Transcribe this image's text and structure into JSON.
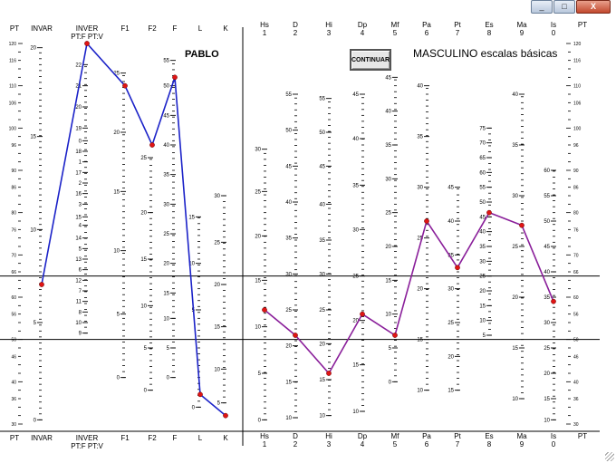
{
  "window": {
    "minimize": "_",
    "maximize": "□",
    "close": "X"
  },
  "patient_name": "PABLO",
  "title": "MASCULINO escalas básicas",
  "continue_button": "CONTINUAR",
  "colors": {
    "validity_line": "#1b22c8",
    "clinical_line": "#8a1f9a",
    "point": "#e01414",
    "axis": "#000000"
  },
  "left_header": {
    "top": [
      {
        "lines": [
          "PT"
        ]
      },
      {
        "lines": [
          "INVAR"
        ]
      },
      {
        "lines": [
          "INVER",
          "PT:F PT:V"
        ]
      },
      {
        "lines": [
          "F1"
        ]
      },
      {
        "lines": [
          "F2"
        ]
      },
      {
        "lines": [
          "F"
        ]
      },
      {
        "lines": [
          "L"
        ]
      },
      {
        "lines": [
          "K"
        ]
      }
    ],
    "bottom": [
      {
        "lines": [
          "PT"
        ]
      },
      {
        "lines": [
          "INVAR"
        ]
      },
      {
        "lines": [
          "INVER",
          "PT:F PT:V"
        ]
      },
      {
        "lines": [
          "F1"
        ]
      },
      {
        "lines": [
          "F2"
        ]
      },
      {
        "lines": [
          "F"
        ]
      },
      {
        "lines": [
          "L"
        ]
      },
      {
        "lines": [
          "K"
        ]
      }
    ]
  },
  "right_header": {
    "top": [
      {
        "lines": [
          "Hs",
          "1"
        ]
      },
      {
        "lines": [
          "D",
          "2"
        ]
      },
      {
        "lines": [
          "Hi",
          "3"
        ]
      },
      {
        "lines": [
          "Dp",
          "4"
        ]
      },
      {
        "lines": [
          "Mf",
          "5"
        ]
      },
      {
        "lines": [
          "Pa",
          "6"
        ]
      },
      {
        "lines": [
          "Pt",
          "7"
        ]
      },
      {
        "lines": [
          "Es",
          "8"
        ]
      },
      {
        "lines": [
          "Ma",
          "9"
        ]
      },
      {
        "lines": [
          "Is",
          "0"
        ]
      },
      {
        "lines": [
          "PT"
        ]
      }
    ],
    "bottom": [
      {
        "lines": [
          "Hs",
          "1"
        ]
      },
      {
        "lines": [
          "D",
          "2"
        ]
      },
      {
        "lines": [
          "Hi",
          "3"
        ]
      },
      {
        "lines": [
          "Dp",
          "4"
        ]
      },
      {
        "lines": [
          "Mf",
          "5"
        ]
      },
      {
        "lines": [
          "Pa",
          "6"
        ]
      },
      {
        "lines": [
          "Pt",
          "7"
        ]
      },
      {
        "lines": [
          "Es",
          "8"
        ]
      },
      {
        "lines": [
          "Ma",
          "9"
        ]
      },
      {
        "lines": [
          "Is",
          "0"
        ]
      },
      {
        "lines": [
          "PT"
        ]
      }
    ]
  },
  "t_axis": {
    "min": 30,
    "max": 120,
    "labels": [
      120,
      116,
      110,
      106,
      100,
      96,
      90,
      86,
      80,
      76,
      70,
      66,
      60,
      56,
      50,
      46,
      40,
      36,
      30
    ]
  },
  "reference_lines_t": [
    65,
    50
  ],
  "validity_scales": [
    {
      "name": "INVAR",
      "labels": [
        {
          "v": "20",
          "t": 119
        },
        {
          "v": "15",
          "t": 98
        },
        {
          "v": "10",
          "t": 76
        },
        {
          "v": "5",
          "t": 54
        },
        {
          "v": "0",
          "t": 31
        }
      ],
      "side": "left"
    },
    {
      "name": "INVER",
      "labels": [
        {
          "v": "22",
          "t": 115
        },
        {
          "v": "21",
          "t": 110
        },
        {
          "v": "20",
          "t": 105
        },
        {
          "v": "19",
          "t": 100
        },
        {
          "v": "0",
          "t": 97
        },
        {
          "v": "18",
          "t": 94.5
        },
        {
          "v": "1",
          "t": 92
        },
        {
          "v": "17",
          "t": 89.5
        },
        {
          "v": "2",
          "t": 87
        },
        {
          "v": "16",
          "t": 84.5
        },
        {
          "v": "3",
          "t": 82
        },
        {
          "v": "15",
          "t": 79
        },
        {
          "v": "4",
          "t": 77
        },
        {
          "v": "14",
          "t": 74
        },
        {
          "v": "5",
          "t": 71.5
        },
        {
          "v": "13",
          "t": 69
        },
        {
          "v": "6",
          "t": 66.5
        },
        {
          "v": "12",
          "t": 64
        },
        {
          "v": "7",
          "t": 61.5
        },
        {
          "v": "11",
          "t": 59
        },
        {
          "v": "8",
          "t": 56.5
        },
        {
          "v": "10",
          "t": 54
        },
        {
          "v": "9",
          "t": 51.5
        }
      ],
      "side": "left"
    },
    {
      "name": "F1",
      "labels": [
        {
          "v": "25",
          "t": 113
        },
        {
          "v": "20",
          "t": 99
        },
        {
          "v": "15",
          "t": 85
        },
        {
          "v": "10",
          "t": 71
        },
        {
          "v": "5",
          "t": 56
        },
        {
          "v": "0",
          "t": 41
        }
      ],
      "side": "left"
    },
    {
      "name": "F2",
      "labels": [
        {
          "v": "25",
          "t": 93
        },
        {
          "v": "20",
          "t": 80
        },
        {
          "v": "15",
          "t": 69
        },
        {
          "v": "10",
          "t": 58
        },
        {
          "v": "5",
          "t": 48
        },
        {
          "v": "0",
          "t": 38
        }
      ],
      "side": "left"
    },
    {
      "name": "F",
      "labels": [
        {
          "v": "55",
          "t": 116
        },
        {
          "v": "50",
          "t": 110
        },
        {
          "v": "45",
          "t": 103
        },
        {
          "v": "40",
          "t": 96
        },
        {
          "v": "35",
          "t": 89
        },
        {
          "v": "30",
          "t": 82
        },
        {
          "v": "25",
          "t": 75
        },
        {
          "v": "20",
          "t": 68
        },
        {
          "v": "15",
          "t": 61
        },
        {
          "v": "10",
          "t": 55
        },
        {
          "v": "5",
          "t": 48
        },
        {
          "v": "0",
          "t": 41
        }
      ],
      "side": "left"
    },
    {
      "name": "L",
      "labels": [
        {
          "v": "15",
          "t": 79
        },
        {
          "v": "10",
          "t": 68
        },
        {
          "v": "5",
          "t": 57
        },
        {
          "v": "0",
          "t": 34
        }
      ],
      "side": "left"
    },
    {
      "name": "K",
      "labels": [
        {
          "v": "30",
          "t": 84
        },
        {
          "v": "25",
          "t": 73
        },
        {
          "v": "20",
          "t": 63
        },
        {
          "v": "15",
          "t": 53
        },
        {
          "v": "10",
          "t": 43
        },
        {
          "v": "5",
          "t": 35
        }
      ],
      "side": "left"
    }
  ],
  "clinical_scales": [
    {
      "name": "Hs",
      "labels": [
        {
          "v": "30",
          "t": 95
        },
        {
          "v": "25",
          "t": 85
        },
        {
          "v": "20",
          "t": 74.5
        },
        {
          "v": "15",
          "t": 64
        },
        {
          "v": "10",
          "t": 53
        },
        {
          "v": "5",
          "t": 42
        },
        {
          "v": "0",
          "t": 31
        }
      ]
    },
    {
      "name": "D",
      "labels": [
        {
          "v": "55",
          "t": 108
        },
        {
          "v": "50",
          "t": 99.5
        },
        {
          "v": "45",
          "t": 91
        },
        {
          "v": "40",
          "t": 82.5
        },
        {
          "v": "35",
          "t": 74
        },
        {
          "v": "30",
          "t": 65.5
        },
        {
          "v": "25",
          "t": 57
        },
        {
          "v": "20",
          "t": 48.5
        },
        {
          "v": "15",
          "t": 40
        },
        {
          "v": "10",
          "t": 31.5
        }
      ]
    },
    {
      "name": "Hi",
      "labels": [
        {
          "v": "55",
          "t": 107
        },
        {
          "v": "50",
          "t": 99
        },
        {
          "v": "45",
          "t": 91
        },
        {
          "v": "40",
          "t": 82
        },
        {
          "v": "35",
          "t": 73.5
        },
        {
          "v": "30",
          "t": 65.5
        },
        {
          "v": "25",
          "t": 57
        },
        {
          "v": "20",
          "t": 49
        },
        {
          "v": "15",
          "t": 40.5
        },
        {
          "v": "10",
          "t": 32
        }
      ]
    },
    {
      "name": "Dp",
      "labels": [
        {
          "v": "45",
          "t": 108
        },
        {
          "v": "40",
          "t": 97.5
        },
        {
          "v": "35",
          "t": 86.5
        },
        {
          "v": "30",
          "t": 76
        },
        {
          "v": "25",
          "t": 65
        },
        {
          "v": "20",
          "t": 54.5
        },
        {
          "v": "15",
          "t": 44
        },
        {
          "v": "10",
          "t": 33
        }
      ]
    },
    {
      "name": "Mf",
      "labels": [
        {
          "v": "45",
          "t": 112
        },
        {
          "v": "40",
          "t": 104
        },
        {
          "v": "35",
          "t": 96
        },
        {
          "v": "30",
          "t": 88
        },
        {
          "v": "25",
          "t": 80
        },
        {
          "v": "20",
          "t": 72
        },
        {
          "v": "15",
          "t": 64
        },
        {
          "v": "10",
          "t": 56
        },
        {
          "v": "5",
          "t": 48
        },
        {
          "v": "0",
          "t": 40
        }
      ]
    },
    {
      "name": "Pa",
      "labels": [
        {
          "v": "40",
          "t": 110
        },
        {
          "v": "35",
          "t": 98
        },
        {
          "v": "30",
          "t": 86
        },
        {
          "v": "25",
          "t": 74
        },
        {
          "v": "20",
          "t": 62
        },
        {
          "v": "15",
          "t": 50
        },
        {
          "v": "10",
          "t": 38
        }
      ]
    },
    {
      "name": "Pt",
      "labels": [
        {
          "v": "45",
          "t": 86
        },
        {
          "v": "40",
          "t": 78
        },
        {
          "v": "35",
          "t": 70
        },
        {
          "v": "30",
          "t": 62
        },
        {
          "v": "25",
          "t": 54
        },
        {
          "v": "20",
          "t": 46
        },
        {
          "v": "15",
          "t": 38
        }
      ]
    },
    {
      "name": "Es",
      "labels": [
        {
          "v": "75",
          "t": 100
        },
        {
          "v": "70",
          "t": 96.5
        },
        {
          "v": "65",
          "t": 93
        },
        {
          "v": "60",
          "t": 89.5
        },
        {
          "v": "55",
          "t": 86
        },
        {
          "v": "50",
          "t": 82.5
        },
        {
          "v": "45",
          "t": 79
        },
        {
          "v": "40",
          "t": 75.5
        },
        {
          "v": "35",
          "t": 72
        },
        {
          "v": "30",
          "t": 68.5
        },
        {
          "v": "25",
          "t": 65
        },
        {
          "v": "20",
          "t": 61.5
        },
        {
          "v": "15",
          "t": 58
        },
        {
          "v": "10",
          "t": 54.5
        },
        {
          "v": "5",
          "t": 51
        }
      ]
    },
    {
      "name": "Ma",
      "labels": [
        {
          "v": "40",
          "t": 108
        },
        {
          "v": "35",
          "t": 96
        },
        {
          "v": "30",
          "t": 84
        },
        {
          "v": "25",
          "t": 72
        },
        {
          "v": "20",
          "t": 60
        },
        {
          "v": "15",
          "t": 48
        },
        {
          "v": "10",
          "t": 36
        }
      ]
    },
    {
      "name": "Is",
      "labels": [
        {
          "v": "60",
          "t": 90
        },
        {
          "v": "55",
          "t": 84
        },
        {
          "v": "50",
          "t": 78
        },
        {
          "v": "45",
          "t": 72
        },
        {
          "v": "40",
          "t": 66
        },
        {
          "v": "35",
          "t": 60
        },
        {
          "v": "30",
          "t": 54
        },
        {
          "v": "25",
          "t": 48
        },
        {
          "v": "20",
          "t": 42
        },
        {
          "v": "15",
          "t": 36
        },
        {
          "v": "10",
          "t": 31
        }
      ]
    }
  ],
  "chart_data": {
    "type": "line",
    "y_axis": "PT",
    "ylim": [
      30,
      120
    ],
    "series": [
      {
        "x": [
          "INVAR",
          "INVER",
          "F1",
          "F2",
          "F",
          "L",
          "K"
        ],
        "pt": [
          63,
          120,
          110,
          96,
          112,
          37,
          32
        ]
      },
      {
        "x": [
          "Hs",
          "D",
          "Hi",
          "Dp",
          "Mf",
          "Pa",
          "Pt",
          "Es",
          "Ma",
          "Is"
        ],
        "pt": [
          57,
          51,
          42,
          56,
          51,
          78,
          67,
          80,
          77,
          59
        ]
      }
    ]
  }
}
